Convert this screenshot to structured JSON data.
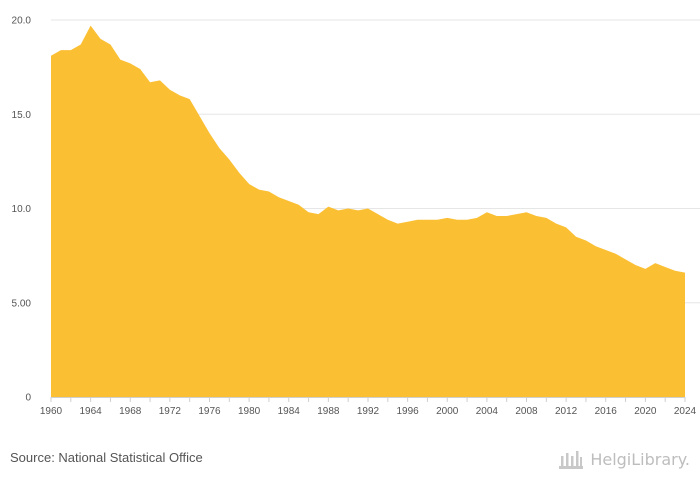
{
  "chart_data": {
    "type": "area",
    "title": "",
    "xlabel": "",
    "ylabel": "",
    "ylim": [
      0,
      20
    ],
    "xlim": [
      1960,
      2024
    ],
    "y_ticks": [
      "0",
      "5.00",
      "10.0",
      "15.0",
      "20.0"
    ],
    "y_tick_values": [
      0,
      5,
      10,
      15,
      20
    ],
    "x_ticks": [
      "1960",
      "1964",
      "1968",
      "1972",
      "1976",
      "1980",
      "1984",
      "1988",
      "1992",
      "1996",
      "2000",
      "2004",
      "2008",
      "2012",
      "2016",
      "2020",
      "2024"
    ],
    "x_tick_values": [
      1960,
      1964,
      1968,
      1972,
      1976,
      1980,
      1984,
      1988,
      1992,
      1996,
      2000,
      2004,
      2008,
      2012,
      2016,
      2020,
      2024
    ],
    "grid": true,
    "colors": {
      "fill": "#FBBF33",
      "grid": "#e6e6e6",
      "axis": "#cfcfcf",
      "tick_text": "#555555"
    },
    "x": [
      1960,
      1961,
      1962,
      1963,
      1964,
      1965,
      1966,
      1967,
      1968,
      1969,
      1970,
      1971,
      1972,
      1973,
      1974,
      1975,
      1976,
      1977,
      1978,
      1979,
      1980,
      1981,
      1982,
      1983,
      1984,
      1985,
      1986,
      1987,
      1988,
      1989,
      1990,
      1991,
      1992,
      1993,
      1994,
      1995,
      1996,
      1997,
      1998,
      1999,
      2000,
      2001,
      2002,
      2003,
      2004,
      2005,
      2006,
      2007,
      2008,
      2009,
      2010,
      2011,
      2012,
      2013,
      2014,
      2015,
      2016,
      2017,
      2018,
      2019,
      2020,
      2021,
      2022,
      2023,
      2024
    ],
    "values": [
      18.1,
      18.4,
      18.4,
      18.7,
      19.7,
      19.0,
      18.7,
      17.9,
      17.7,
      17.4,
      16.7,
      16.8,
      16.3,
      16.0,
      15.8,
      14.9,
      14.0,
      13.2,
      12.6,
      11.9,
      11.3,
      11.0,
      10.9,
      10.6,
      10.4,
      10.2,
      9.8,
      9.7,
      10.1,
      9.9,
      10.0,
      9.9,
      10.0,
      9.7,
      9.4,
      9.2,
      9.3,
      9.4,
      9.4,
      9.4,
      9.5,
      9.4,
      9.4,
      9.5,
      9.8,
      9.6,
      9.6,
      9.7,
      9.8,
      9.6,
      9.5,
      9.2,
      9.0,
      8.5,
      8.3,
      8.0,
      7.8,
      7.6,
      7.3,
      7.0,
      6.8,
      7.1,
      6.9,
      6.7,
      6.6
    ]
  },
  "footer": {
    "source": "Source: National Statistical Office",
    "brand": "HelgiLibrary."
  }
}
